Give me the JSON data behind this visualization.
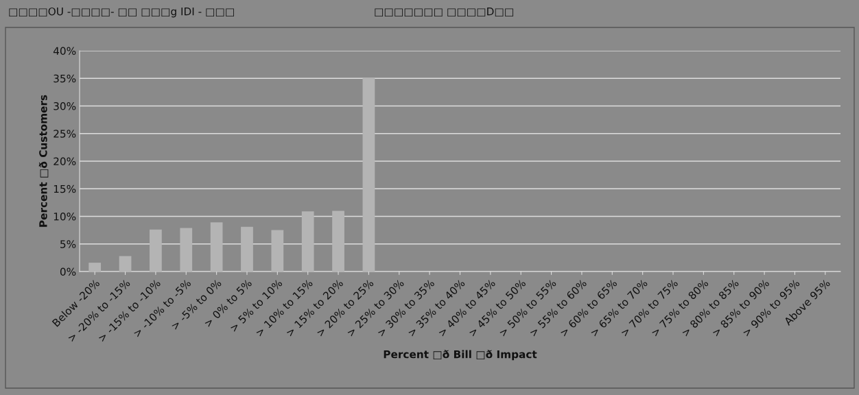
{
  "chart_data": {
    "type": "bar",
    "title": "□□□□OU -□□□□- □□ □□□g IDI - □□□",
    "subtitle": "□□□□□□□ □□□□D□□",
    "xlabel": "Percent □ð Bill □ð Impact",
    "ylabel": "Percent □ð Customers",
    "categories": [
      "Below -20%",
      "> -20% to -15%",
      "> -15% to -10%",
      "> -10% to -5%",
      "> -5% to 0%",
      "> 0% to 5%",
      "> 5% to 10%",
      "> 10% to 15%",
      "> 15% to 20%",
      "> 20% to 25%",
      "> 25% to 30%",
      "> 30% to 35%",
      "> 35% to 40%",
      "> 40% to 45%",
      "> 45% to 50%",
      "> 50% to 55%",
      "> 55% to 60%",
      "> 60% to 65%",
      "> 65% to 70%",
      "> 70% to 75%",
      "> 75% to 80%",
      "> 80% to 85%",
      "> 85% to 90%",
      "> 90% to 95%",
      "Above 95%"
    ],
    "values": [
      1.6,
      2.8,
      7.6,
      7.9,
      8.9,
      8.1,
      7.5,
      10.9,
      11.0,
      35.1,
      0,
      0,
      0,
      0,
      0,
      0,
      0,
      0,
      0,
      0,
      0,
      0,
      0,
      0,
      0
    ],
    "color": "#b4b4b4",
    "ylim": [
      0,
      40
    ],
    "yticks": [
      {
        "value": 0,
        "label": "0%"
      },
      {
        "value": 5,
        "label": "5%"
      },
      {
        "value": 10,
        "label": "10%"
      },
      {
        "value": 15,
        "label": "15%"
      },
      {
        "value": 20,
        "label": "20%"
      },
      {
        "value": 25,
        "label": "25%"
      },
      {
        "value": 30,
        "label": "30%"
      },
      {
        "value": 35,
        "label": "35%"
      },
      {
        "value": 40,
        "label": "40%"
      }
    ],
    "grid": "y",
    "legend": false
  }
}
